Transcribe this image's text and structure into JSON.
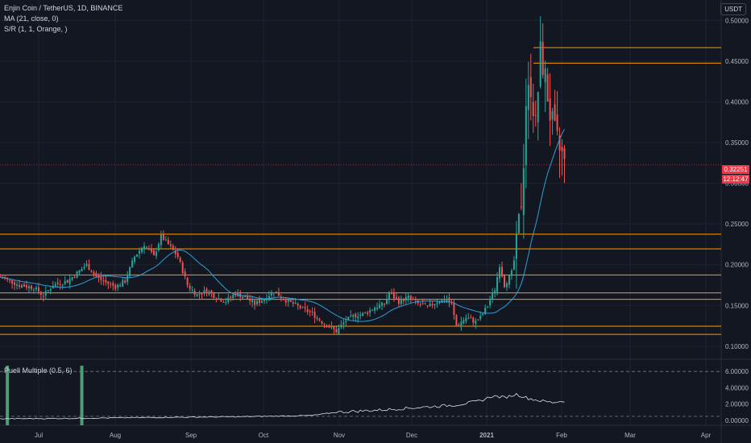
{
  "header": {
    "symbol_line": "Enjin Coin / TetherUS, 1D, BINANCE",
    "ma_line": "MA (21, close, 0)",
    "sr_line": "S/R (1, 1, Orange, )",
    "currency_badge": "USDT"
  },
  "price_tags": {
    "last_price": "0.32251",
    "countdown": "12:12:47"
  },
  "indicator": {
    "label": "Puell Multiple (0.5, 6)"
  },
  "colors": {
    "background": "#131722",
    "grid": "#1f2330",
    "up": "#26a69a",
    "down": "#ef5350",
    "ma": "#2e9fd8",
    "sr": "#ff9800",
    "price_line": "#f23645",
    "indicator_line": "#e0e0e0",
    "indicator_bar": "#4c9d78"
  },
  "chart_data": [
    {
      "type": "candlestick",
      "symbol": "Enjin Coin / TetherUS",
      "interval": "1D",
      "exchange": "BINANCE",
      "x_ticks": [
        "Jul",
        "Aug",
        "Sep",
        "Oct",
        "Nov",
        "Dec",
        "2021",
        "Feb",
        "Mar",
        "Apr"
      ],
      "y_ticks": [
        "0.10000",
        "0.15000",
        "0.20000",
        "0.25000",
        "0.30000",
        "0.35000",
        "0.40000",
        "0.45000",
        "0.50000"
      ],
      "ylim": [
        0.085,
        0.525
      ],
      "grid": true,
      "last_price": 0.32251,
      "support_resistance_levels": [
        0.4665,
        0.4475,
        0.2375,
        0.2195,
        0.1875,
        0.1655,
        0.1575,
        0.1245,
        0.1145
      ],
      "price_keypoints": [
        [
          0,
          0.185
        ],
        [
          8,
          0.175
        ],
        [
          14,
          0.172
        ],
        [
          18,
          0.162
        ],
        [
          22,
          0.175
        ],
        [
          28,
          0.18
        ],
        [
          32,
          0.19
        ],
        [
          36,
          0.2
        ],
        [
          40,
          0.185
        ],
        [
          44,
          0.178
        ],
        [
          48,
          0.173
        ],
        [
          52,
          0.18
        ],
        [
          56,
          0.21
        ],
        [
          60,
          0.225
        ],
        [
          64,
          0.21
        ],
        [
          67,
          0.235
        ],
        [
          70,
          0.225
        ],
        [
          74,
          0.21
        ],
        [
          78,
          0.175
        ],
        [
          82,
          0.163
        ],
        [
          86,
          0.168
        ],
        [
          90,
          0.16
        ],
        [
          94,
          0.155
        ],
        [
          98,
          0.165
        ],
        [
          102,
          0.16
        ],
        [
          106,
          0.152
        ],
        [
          110,
          0.158
        ],
        [
          114,
          0.168
        ],
        [
          118,
          0.158
        ],
        [
          122,
          0.152
        ],
        [
          126,
          0.146
        ],
        [
          130,
          0.14
        ],
        [
          134,
          0.13
        ],
        [
          138,
          0.122
        ],
        [
          140,
          0.118
        ],
        [
          144,
          0.132
        ],
        [
          148,
          0.138
        ],
        [
          152,
          0.14
        ],
        [
          156,
          0.148
        ],
        [
          160,
          0.152
        ],
        [
          162,
          0.165
        ],
        [
          166,
          0.155
        ],
        [
          170,
          0.16
        ],
        [
          174,
          0.152
        ],
        [
          178,
          0.148
        ],
        [
          182,
          0.155
        ],
        [
          186,
          0.158
        ],
        [
          188,
          0.15
        ],
        [
          190,
          0.125
        ],
        [
          194,
          0.135
        ],
        [
          198,
          0.13
        ],
        [
          200,
          0.135
        ],
        [
          203,
          0.15
        ],
        [
          206,
          0.17
        ],
        [
          208,
          0.2
        ],
        [
          210,
          0.175
        ],
        [
          213,
          0.19
        ],
        [
          215,
          0.22
        ],
        [
          217,
          0.28
        ],
        [
          218,
          0.33
        ],
        [
          219,
          0.4
        ],
        [
          221,
          0.42
        ],
        [
          223,
          0.37
        ],
        [
          225,
          0.46
        ],
        [
          227,
          0.43
        ],
        [
          229,
          0.385
        ],
        [
          231,
          0.36
        ],
        [
          233,
          0.34
        ],
        [
          234,
          0.335
        ],
        [
          235,
          0.322
        ]
      ],
      "ma_period": 21,
      "ma_source": "close"
    },
    {
      "type": "line",
      "name": "Puell Multiple (0.5, 6)",
      "y_ticks": [
        "0.00000",
        "2.00000",
        "4.00000",
        "6.00000"
      ],
      "ylim": [
        -0.6,
        7.5
      ],
      "threshold_lines": [
        0.5,
        6
      ],
      "keypoints": [
        [
          0,
          0.2
        ],
        [
          30,
          0.25
        ],
        [
          60,
          0.35
        ],
        [
          100,
          0.45
        ],
        [
          130,
          0.6
        ],
        [
          140,
          1.0
        ],
        [
          160,
          1.3
        ],
        [
          180,
          1.7
        ],
        [
          190,
          1.9
        ],
        [
          200,
          2.4
        ],
        [
          205,
          3.0
        ],
        [
          210,
          2.8
        ],
        [
          215,
          3.2
        ],
        [
          220,
          2.7
        ],
        [
          225,
          2.4
        ],
        [
          230,
          2.2
        ],
        [
          235,
          2.4
        ]
      ],
      "highlight_bars": [
        3,
        34
      ]
    }
  ]
}
